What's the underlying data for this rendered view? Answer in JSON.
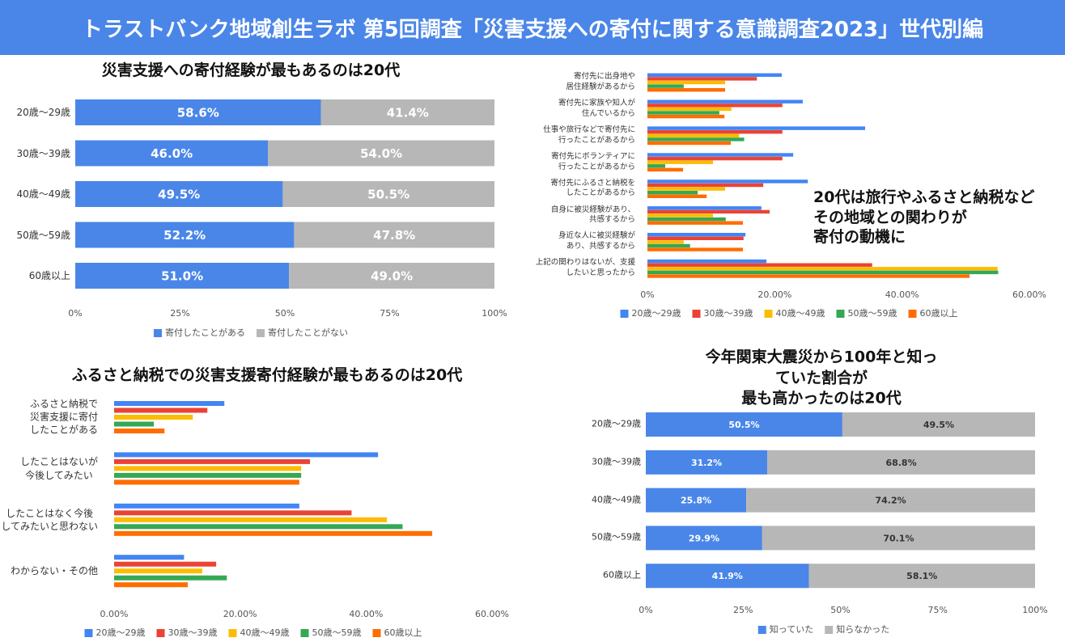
{
  "title": "トラストバンク地域創生ラボ 第5回調査「災害支援への寄付に関する意識調査2023」世代別編",
  "chart_data": [
    {
      "type": "bar",
      "orientation": "horizontal",
      "stacked": true,
      "title": "災害支援への寄付経験が最もあるのは20代",
      "categories": [
        "20歳～29歳",
        "30歳～39歳",
        "40歳～49歳",
        "50歳～59歳",
        "60歳以上"
      ],
      "series": [
        {
          "name": "寄付したことがある",
          "color": "#4a86e8",
          "values": [
            58.6,
            46.0,
            49.5,
            52.2,
            51.0
          ],
          "value_labels": [
            "58.6%",
            "46.0%",
            "49.5%",
            "52.2%",
            "51.0%"
          ]
        },
        {
          "name": "寄付したことがない",
          "color": "#b7b7b7",
          "values": [
            41.4,
            54.0,
            50.5,
            47.8,
            49.0
          ],
          "value_labels": [
            "41.4%",
            "54.0%",
            "50.5%",
            "47.8%",
            "49.0%"
          ]
        }
      ],
      "xlim": [
        0,
        100
      ],
      "xticks": [
        {
          "value": 0,
          "label": "0%"
        },
        {
          "value": 25,
          "label": "25%"
        },
        {
          "value": 50,
          "label": "50%"
        },
        {
          "value": 75,
          "label": "75%"
        },
        {
          "value": 100,
          "label": "100%"
        }
      ]
    },
    {
      "type": "bar",
      "orientation": "horizontal",
      "stacked": false,
      "annotation": "20代は旅行やふるさと納税など\nその地域との関わりが\n寄付の動機に",
      "categories": [
        "寄付先に出身地や\n居住経験があるから",
        "寄付先に家族や知人が\n住んでいるから",
        "仕事や旅行などで寄付先に\n行ったことがあるから",
        "寄付先にボランティアに\n行ったことがあるから",
        "寄付先にふるさと納税を\nしたことがあるから",
        "自身に被災経験があり、\n共感するから",
        "身近な人に被災経験が\nあり、共感するから",
        "上記の関わりはないが、支援\nしたいと思ったから"
      ],
      "series": [
        {
          "name": "20歳～29歳",
          "color": "#4285f4",
          "values": [
            21.1,
            24.4,
            34.2,
            22.9,
            25.2,
            17.9,
            15.4,
            18.7
          ]
        },
        {
          "name": "30歳～39歳",
          "color": "#ea4335",
          "values": [
            17.2,
            21.2,
            21.2,
            21.2,
            18.2,
            19.2,
            15.1,
            35.3
          ]
        },
        {
          "name": "40歳～49歳",
          "color": "#fbbc04",
          "values": [
            12.2,
            13.2,
            14.4,
            10.3,
            12.2,
            10.3,
            5.7,
            55.0
          ]
        },
        {
          "name": "50歳～59歳",
          "color": "#34a853",
          "values": [
            5.7,
            11.3,
            15.2,
            2.8,
            7.9,
            12.3,
            6.7,
            55.1
          ]
        },
        {
          "name": "60歳以上",
          "color": "#ff6d01",
          "values": [
            12.2,
            12.1,
            13.1,
            5.6,
            9.3,
            15.0,
            15.0,
            50.6
          ]
        }
      ],
      "xlim": [
        0,
        60
      ],
      "xticks": [
        {
          "value": 0,
          "label": "0%"
        },
        {
          "value": 20,
          "label": "20.00%"
        },
        {
          "value": 40,
          "label": "40.00%"
        },
        {
          "value": 60,
          "label": "60.00%"
        }
      ]
    },
    {
      "type": "bar",
      "orientation": "horizontal",
      "stacked": false,
      "title": "ふるさと納税での災害支援寄付経験が最もあるのは20代",
      "categories": [
        "ふるさと納税で\n災害支援に寄付\nしたことがある",
        "したことはないが\n今後してみたい",
        "したことはなく今後\nしてみたいと思わない",
        "わからない・その他"
      ],
      "series": [
        {
          "name": "20歳～29歳",
          "color": "#4285f4",
          "values": [
            17.5,
            41.9,
            29.4,
            11.1
          ]
        },
        {
          "name": "30歳～39歳",
          "color": "#ea4335",
          "values": [
            14.8,
            31.1,
            37.7,
            16.2
          ]
        },
        {
          "name": "40歳～49歳",
          "color": "#fbbc04",
          "values": [
            12.5,
            29.7,
            43.3,
            14.0
          ]
        },
        {
          "name": "50歳～59歳",
          "color": "#34a853",
          "values": [
            6.3,
            29.7,
            45.8,
            17.9
          ]
        },
        {
          "name": "60歳以上",
          "color": "#ff6d01",
          "values": [
            8.0,
            29.4,
            50.5,
            11.7
          ]
        }
      ],
      "xlim": [
        0,
        60
      ],
      "xticks": [
        {
          "value": 0,
          "label": "0.00%"
        },
        {
          "value": 20,
          "label": "20.00%"
        },
        {
          "value": 40,
          "label": "40.00%"
        },
        {
          "value": 60,
          "label": "60.00%"
        }
      ]
    },
    {
      "type": "bar",
      "orientation": "horizontal",
      "stacked": true,
      "title": "今年関東大震災から100年と知っていた割合が\n最も高かったのは20代",
      "categories": [
        "20歳～29歳",
        "30歳～39歳",
        "40歳～49歳",
        "50歳～59歳",
        "60歳以上"
      ],
      "series": [
        {
          "name": "知っていた",
          "color": "#4a86e8",
          "values": [
            50.5,
            31.2,
            25.8,
            29.9,
            41.9
          ],
          "value_labels": [
            "50.5%",
            "31.2%",
            "25.8%",
            "29.9%",
            "41.9%"
          ]
        },
        {
          "name": "知らなかった",
          "color": "#b7b7b7",
          "values": [
            49.5,
            68.8,
            74.2,
            70.1,
            58.1
          ],
          "value_labels": [
            "49.5%",
            "68.8%",
            "74.2%",
            "70.1%",
            "58.1%"
          ]
        }
      ],
      "xlim": [
        0,
        100
      ],
      "xticks": [
        {
          "value": 0,
          "label": "0%"
        },
        {
          "value": 25,
          "label": "25%"
        },
        {
          "value": 50,
          "label": "50%"
        },
        {
          "value": 75,
          "label": "75%"
        },
        {
          "value": 100,
          "label": "100%"
        }
      ]
    }
  ]
}
